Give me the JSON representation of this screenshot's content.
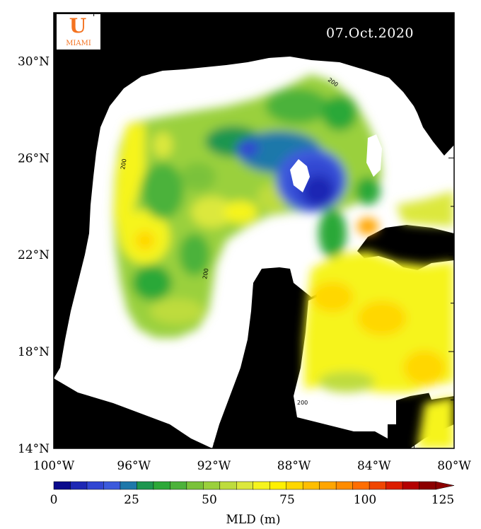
{
  "map": {
    "date": "07.Oct.2020",
    "logo": {
      "letter": "U",
      "text": "MIAMI",
      "green": "#005030",
      "orange": "#f47321"
    },
    "latitude_ticks": [
      {
        "value": 30,
        "label": "30°N"
      },
      {
        "value": 26,
        "label": "26°N"
      },
      {
        "value": 22,
        "label": "22°N"
      },
      {
        "value": 18,
        "label": "18°N"
      },
      {
        "value": 14,
        "label": "14°N"
      }
    ],
    "longitude_ticks": [
      {
        "value": -100,
        "label": "100°W"
      },
      {
        "value": -96,
        "label": "96°W"
      },
      {
        "value": -92,
        "label": "92°W"
      },
      {
        "value": -88,
        "label": "88°W"
      },
      {
        "value": -84,
        "label": "84°W"
      },
      {
        "value": -80,
        "label": "80°W"
      }
    ],
    "lon_range": [
      -100,
      -80
    ],
    "lat_range": [
      14,
      32
    ],
    "contour_label": "200",
    "land_color": "#000000",
    "shelf_color": "#ffffff"
  },
  "colorbar": {
    "title": "MLD (m)",
    "min": 0,
    "max": 125,
    "ticks": [
      {
        "value": 0,
        "label": "0"
      },
      {
        "value": 25,
        "label": "25"
      },
      {
        "value": 50,
        "label": "50"
      },
      {
        "value": 75,
        "label": "75"
      },
      {
        "value": 100,
        "label": "100"
      },
      {
        "value": 125,
        "label": "125"
      }
    ],
    "colors": [
      "#0a0a8c",
      "#1e28b4",
      "#3246d2",
      "#3c5adc",
      "#1e78aa",
      "#1e9650",
      "#2ca838",
      "#4cb23a",
      "#7ac23a",
      "#9ad03c",
      "#bedc3c",
      "#dce83c",
      "#f6f41e",
      "#fff000",
      "#ffd700",
      "#ffbe00",
      "#ffa500",
      "#ff8c00",
      "#ff6e00",
      "#f04600",
      "#dc1e00",
      "#b40000",
      "#8c0000"
    ]
  }
}
